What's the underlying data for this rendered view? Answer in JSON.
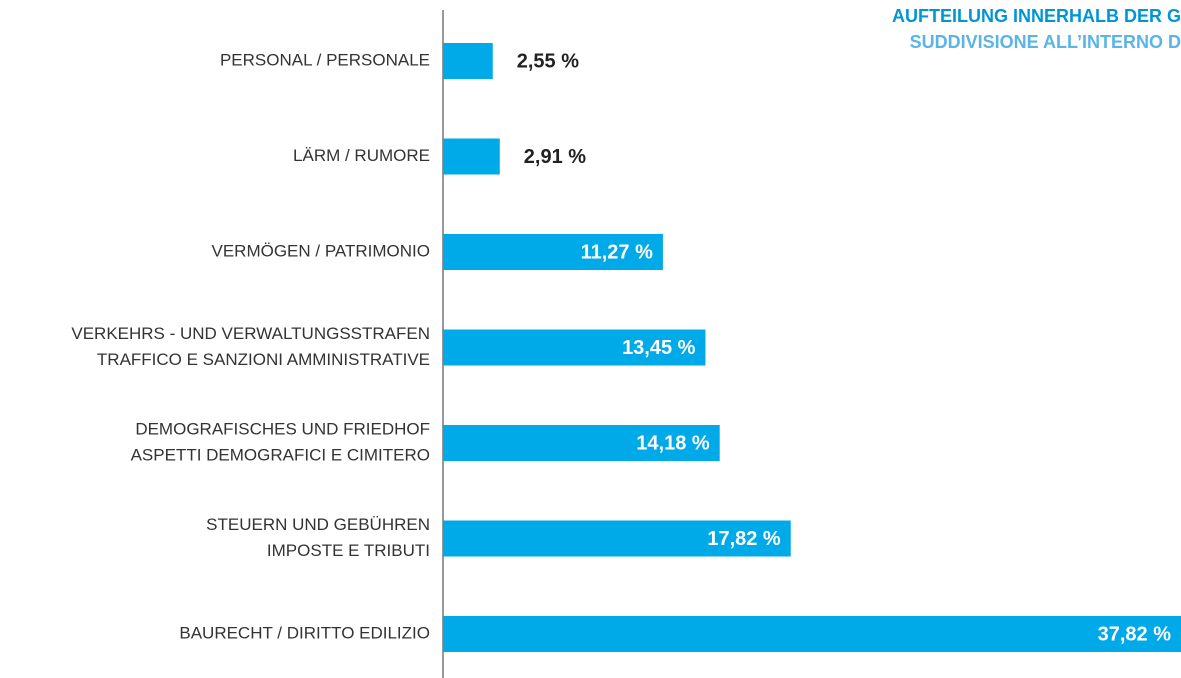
{
  "chart_data": {
    "type": "bar",
    "orientation": "horizontal",
    "title": "AUFTEILUNG INNERHALB DER G",
    "subtitle": "SUDDIVISIONE ALL’INTERNO D",
    "categories": [
      [
        "PERSONAL / PERSONALE"
      ],
      [
        "LÄRM / RUMORE"
      ],
      [
        "VERMÖGEN / PATRIMONIO"
      ],
      [
        "VERKEHRS - UND VERWALTUNGSSTRAFEN",
        "TRAFFICO E SANZIONI AMMINISTRATIVE"
      ],
      [
        "DEMOGRAFISCHES UND FRIEDHOF",
        "ASPETTI DEMOGRAFICI E CIMITERO"
      ],
      [
        "STEUERN UND GEBÜHREN",
        "IMPOSTE E TRIBUTI"
      ],
      [
        "BAURECHT / DIRITTO EDILIZIO"
      ]
    ],
    "values": [
      2.55,
      2.91,
      11.27,
      13.45,
      14.18,
      17.82,
      37.82
    ],
    "value_labels": [
      "2,55 %",
      "2,91 %",
      "11,27 %",
      "13,45 %",
      "14,18 %",
      "17,82 %",
      "37,82 %"
    ],
    "color": "#00a9e8"
  }
}
